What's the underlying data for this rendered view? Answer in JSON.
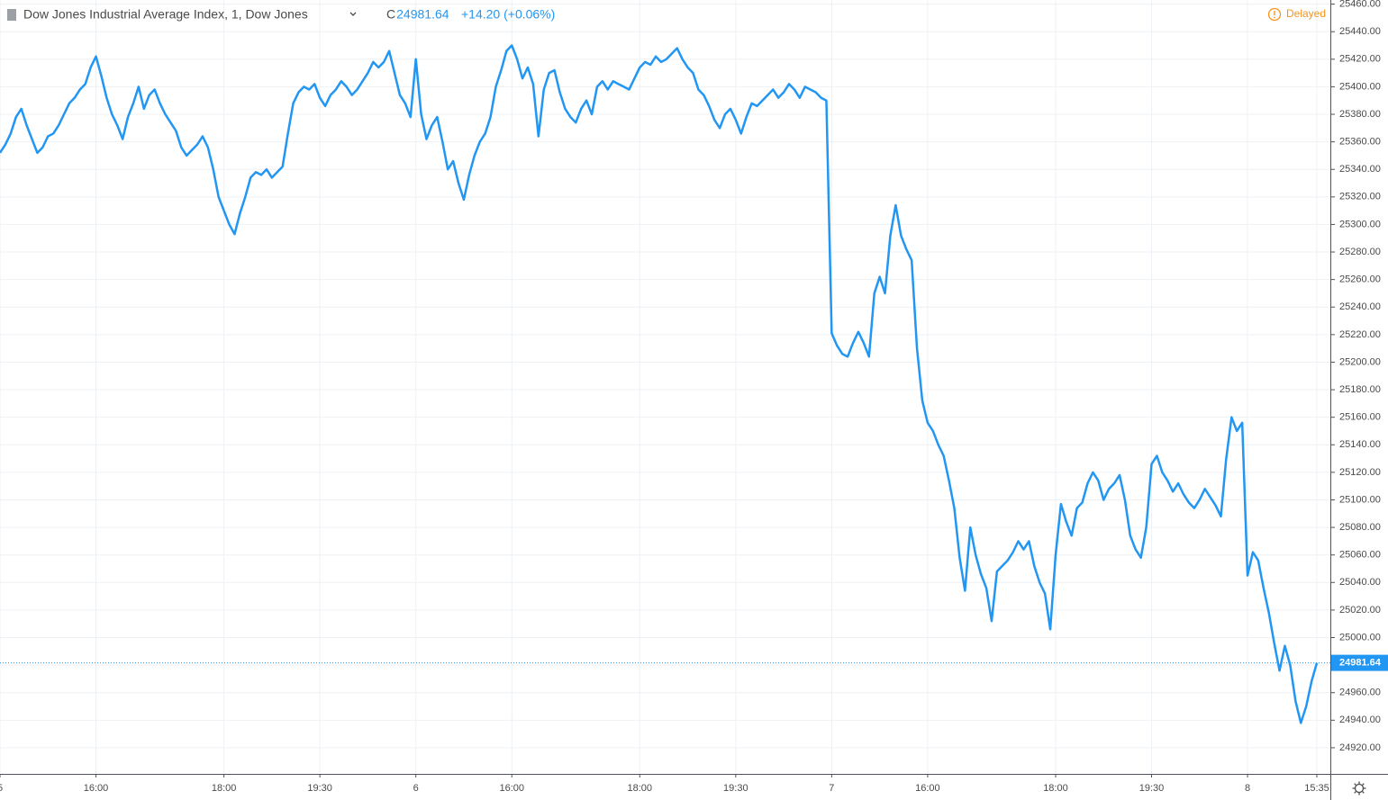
{
  "chart_data": {
    "type": "line",
    "title": "Dow Jones Industrial Average Index, 1, Dow Jones",
    "ohlc_label": "C",
    "close": 24981.64,
    "change": "+14.20 (+0.06%)",
    "status": "Delayed",
    "last_price": 24981.64,
    "color": "#2196f3",
    "grid": true,
    "ylim": [
      24901,
      25463
    ],
    "yticks": [
      {
        "value": 24920,
        "label": "24920.00"
      },
      {
        "value": 24940,
        "label": "24940.00"
      },
      {
        "value": 24960,
        "label": "24960.00"
      },
      {
        "value": 24980,
        "label": "24980.00"
      },
      {
        "value": 25000,
        "label": "25000.00"
      },
      {
        "value": 25020,
        "label": "25020.00"
      },
      {
        "value": 25040,
        "label": "25040.00"
      },
      {
        "value": 25060,
        "label": "25060.00"
      },
      {
        "value": 25080,
        "label": "25080.00"
      },
      {
        "value": 25100,
        "label": "25100.00"
      },
      {
        "value": 25120,
        "label": "25120.00"
      },
      {
        "value": 25140,
        "label": "25140.00"
      },
      {
        "value": 25160,
        "label": "25160.00"
      },
      {
        "value": 25180,
        "label": "25180.00"
      },
      {
        "value": 25200,
        "label": "25200.00"
      },
      {
        "value": 25220,
        "label": "25220.00"
      },
      {
        "value": 25240,
        "label": "25240.00"
      },
      {
        "value": 25260,
        "label": "25260.00"
      },
      {
        "value": 25280,
        "label": "25280.00"
      },
      {
        "value": 25300,
        "label": "25300.00"
      },
      {
        "value": 25320,
        "label": "25320.00"
      },
      {
        "value": 25340,
        "label": "25340.00"
      },
      {
        "value": 25360,
        "label": "25360.00"
      },
      {
        "value": 25380,
        "label": "25380.00"
      },
      {
        "value": 25400,
        "label": "25400.00"
      },
      {
        "value": 25420,
        "label": "25420.00"
      },
      {
        "value": 25440,
        "label": "25440.00"
      },
      {
        "value": 25460,
        "label": "25460.00"
      }
    ],
    "categories": [
      "5",
      null,
      null,
      null,
      null,
      null,
      null,
      null,
      null,
      null,
      null,
      null,
      null,
      null,
      null,
      null,
      null,
      null,
      "16:00",
      null,
      null,
      null,
      null,
      null,
      null,
      null,
      null,
      null,
      null,
      null,
      null,
      null,
      null,
      null,
      null,
      null,
      null,
      null,
      null,
      null,
      null,
      null,
      "18:00",
      null,
      null,
      null,
      null,
      null,
      null,
      null,
      null,
      null,
      null,
      null,
      null,
      null,
      null,
      null,
      null,
      null,
      "19:30",
      null,
      null,
      null,
      null,
      null,
      null,
      null,
      null,
      null,
      null,
      null,
      null,
      null,
      null,
      null,
      null,
      null,
      "6",
      null,
      null,
      null,
      null,
      null,
      null,
      null,
      null,
      null,
      null,
      null,
      null,
      null,
      null,
      null,
      null,
      null,
      "16:00",
      null,
      null,
      null,
      null,
      null,
      null,
      null,
      null,
      null,
      null,
      null,
      null,
      null,
      null,
      null,
      null,
      null,
      null,
      null,
      null,
      null,
      null,
      null,
      "18:00",
      null,
      null,
      null,
      null,
      null,
      null,
      null,
      null,
      null,
      null,
      null,
      null,
      null,
      null,
      null,
      null,
      null,
      "19:30",
      null,
      null,
      null,
      null,
      null,
      null,
      null,
      null,
      null,
      null,
      null,
      null,
      null,
      null,
      null,
      null,
      null,
      "7",
      null,
      null,
      null,
      null,
      null,
      null,
      null,
      null,
      null,
      null,
      null,
      null,
      null,
      null,
      null,
      null,
      null,
      "16:00",
      null,
      null,
      null,
      null,
      null,
      null,
      null,
      null,
      null,
      null,
      null,
      null,
      null,
      null,
      null,
      null,
      null,
      null,
      null,
      null,
      null,
      null,
      null,
      "18:00",
      null,
      null,
      null,
      null,
      null,
      null,
      null,
      null,
      null,
      null,
      null,
      null,
      null,
      null,
      null,
      null,
      null,
      "19:30",
      null,
      null,
      null,
      null,
      null,
      null,
      null,
      null,
      null,
      null,
      null,
      null,
      null,
      null,
      null,
      null,
      null,
      "8",
      null,
      null,
      null,
      null,
      null,
      null,
      null,
      null,
      null,
      null,
      null,
      null,
      "15:35"
    ],
    "values": [
      25352,
      25358,
      25366,
      25378,
      25384,
      25372,
      25362,
      25352,
      25356,
      25364,
      25366,
      25372,
      25380,
      25388,
      25392,
      25398,
      25402,
      25414,
      25422,
      25408,
      25392,
      25380,
      25372,
      25362,
      25378,
      25388,
      25400,
      25384,
      25394,
      25398,
      25388,
      25380,
      25374,
      25368,
      25356,
      25350,
      25354,
      25358,
      25364,
      25356,
      25340,
      25320,
      25310,
      25300,
      25293,
      25308,
      25320,
      25334,
      25338,
      25336,
      25340,
      25334,
      25338,
      25342,
      25366,
      25388,
      25396,
      25400,
      25398,
      25402,
      25392,
      25386,
      25394,
      25398,
      25404,
      25400,
      25394,
      25398,
      25404,
      25410,
      25418,
      25414,
      25418,
      25426,
      25410,
      25394,
      25388,
      25378,
      25420,
      25380,
      25362,
      25372,
      25378,
      25360,
      25340,
      25346,
      25330,
      25318,
      25336,
      25350,
      25360,
      25366,
      25378,
      25400,
      25412,
      25426,
      25430,
      25420,
      25406,
      25414,
      25402,
      25364,
      25398,
      25410,
      25412,
      25396,
      25384,
      25378,
      25374,
      25384,
      25390,
      25380,
      25400,
      25404,
      25398,
      25404,
      25402,
      25400,
      25398,
      25406,
      25414,
      25418,
      25416,
      25422,
      25418,
      25420,
      25424,
      25428,
      25420,
      25414,
      25410,
      25398,
      25394,
      25386,
      25376,
      25370,
      25380,
      25384,
      25376,
      25366,
      25378,
      25388,
      25386,
      25390,
      25394,
      25398,
      25392,
      25396,
      25402,
      25398,
      25392,
      25400,
      25398,
      25396,
      25392,
      25390,
      25221,
      25212,
      25206,
      25204,
      25214,
      25222,
      25214,
      25204,
      25250,
      25262,
      25250,
      25292,
      25314,
      25292,
      25282,
      25274,
      25210,
      25172,
      25156,
      25150,
      25140,
      25132,
      25114,
      25094,
      25058,
      25034,
      25080,
      25060,
      25046,
      25036,
      25012,
      25048,
      25052,
      25056,
      25062,
      25070,
      25064,
      25070,
      25052,
      25040,
      25032,
      25006,
      25060,
      25097,
      25084,
      25074,
      25094,
      25098,
      25112,
      25120,
      25114,
      25100,
      25108,
      25112,
      25118,
      25100,
      25074,
      25064,
      25058,
      25080,
      25126,
      25132,
      25120,
      25114,
      25106,
      25112,
      25104,
      25098,
      25094,
      25100,
      25108,
      25102,
      25096,
      25088,
      25130,
      25160,
      25150,
      25156,
      25045,
      25062,
      25056,
      25036,
      25018,
      24996,
      24976,
      24994,
      24980,
      24954,
      24938,
      24950,
      24968,
      24981.64
    ]
  }
}
